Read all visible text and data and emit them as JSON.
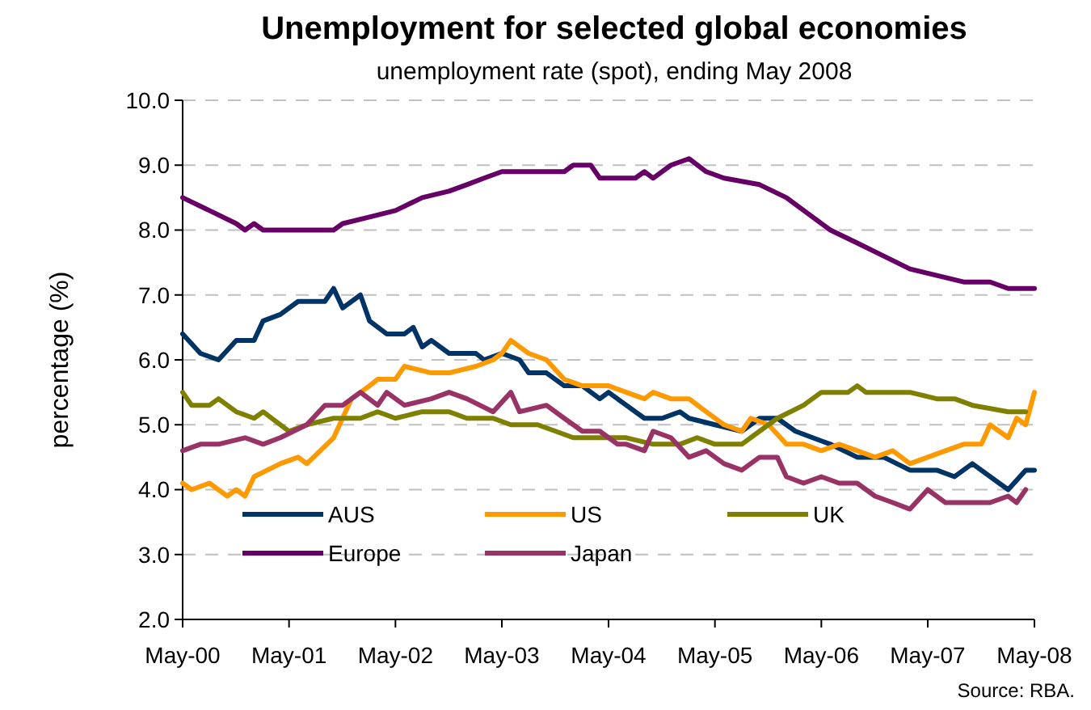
{
  "chart_data": {
    "type": "line",
    "title": "Unemployment for selected global economies",
    "subtitle": "unemployment rate (spot), ending May 2008",
    "ylabel": "percentage (%)",
    "xlim": [
      "2000-05",
      "2008-05"
    ],
    "xticks": [
      {
        "value": "2000-05",
        "label": "May-00"
      },
      {
        "value": "2001-05",
        "label": "May-01"
      },
      {
        "value": "2002-05",
        "label": "May-02"
      },
      {
        "value": "2003-05",
        "label": "May-03"
      },
      {
        "value": "2004-05",
        "label": "May-04"
      },
      {
        "value": "2005-05",
        "label": "May-05"
      },
      {
        "value": "2006-05",
        "label": "May-06"
      },
      {
        "value": "2007-05",
        "label": "May-07"
      },
      {
        "value": "2008-05",
        "label": "May-08"
      }
    ],
    "ylim": [
      2,
      10
    ],
    "yticks": [
      {
        "value": 2,
        "label": "2.0"
      },
      {
        "value": 3,
        "label": "3.0"
      },
      {
        "value": 4,
        "label": "4.0"
      },
      {
        "value": 5,
        "label": "5.0"
      },
      {
        "value": 6,
        "label": "6.0"
      },
      {
        "value": 7,
        "label": "7.0"
      },
      {
        "value": 8,
        "label": "8.0"
      },
      {
        "value": 9,
        "label": "9.0"
      },
      {
        "value": 10,
        "label": "10.0"
      }
    ],
    "grid": "y",
    "legend": "bottom",
    "marker": "none",
    "line_style": "solid",
    "annotations": [
      "Source: RBA."
    ],
    "series": [
      {
        "name": "AUS",
        "color": "#003366",
        "x": [
          "2000-05",
          "2000-07",
          "2000-09",
          "2000-11",
          "2001-01",
          "2001-02",
          "2001-04",
          "2001-06",
          "2001-09",
          "2001-10",
          "2001-11",
          "2002-01",
          "2002-02",
          "2002-04",
          "2002-06",
          "2002-07",
          "2002-08",
          "2002-09",
          "2002-11",
          "2003-02",
          "2003-03",
          "2003-05",
          "2003-07",
          "2003-08",
          "2003-10",
          "2003-12",
          "2004-02",
          "2004-04",
          "2004-05",
          "2004-07",
          "2004-09",
          "2004-11",
          "2005-01",
          "2005-02",
          "2005-05",
          "2005-08",
          "2005-10",
          "2005-12",
          "2006-02",
          "2006-04",
          "2006-06",
          "2006-09",
          "2006-12",
          "2007-03",
          "2007-06",
          "2007-08",
          "2007-10",
          "2008-01",
          "2008-02",
          "2008-04",
          "2008-05"
        ],
        "values": [
          6.4,
          6.1,
          6.0,
          6.3,
          6.3,
          6.6,
          6.7,
          6.9,
          6.9,
          7.1,
          6.8,
          7.0,
          6.6,
          6.4,
          6.4,
          6.5,
          6.2,
          6.3,
          6.1,
          6.1,
          6.0,
          6.1,
          6.0,
          5.8,
          5.8,
          5.6,
          5.6,
          5.4,
          5.5,
          5.3,
          5.1,
          5.1,
          5.2,
          5.1,
          5.0,
          4.9,
          5.1,
          5.1,
          4.9,
          4.8,
          4.7,
          4.5,
          4.5,
          4.3,
          4.3,
          4.2,
          4.4,
          4.1,
          4.0,
          4.3,
          4.3
        ]
      },
      {
        "name": "US",
        "color": "#ff9900",
        "x": [
          "2000-05",
          "2000-06",
          "2000-08",
          "2000-10",
          "2000-11",
          "2000-12",
          "2001-01",
          "2001-04",
          "2001-06",
          "2001-07",
          "2001-10",
          "2001-12",
          "2002-02",
          "2002-03",
          "2002-05",
          "2002-06",
          "2002-09",
          "2002-11",
          "2003-02",
          "2003-04",
          "2003-05",
          "2003-06",
          "2003-07",
          "2003-08",
          "2003-10",
          "2003-12",
          "2004-02",
          "2004-05",
          "2004-07",
          "2004-09",
          "2004-10",
          "2004-12",
          "2005-02",
          "2005-04",
          "2005-06",
          "2005-08",
          "2005-09",
          "2005-11",
          "2006-01",
          "2006-03",
          "2006-05",
          "2006-07",
          "2006-09",
          "2006-11",
          "2007-01",
          "2007-03",
          "2007-05",
          "2007-07",
          "2007-09",
          "2007-11",
          "2007-12",
          "2008-02",
          "2008-03",
          "2008-04",
          "2008-05"
        ],
        "values": [
          4.1,
          4.0,
          4.1,
          3.9,
          4.0,
          3.9,
          4.2,
          4.4,
          4.5,
          4.4,
          4.8,
          5.4,
          5.6,
          5.7,
          5.7,
          5.9,
          5.8,
          5.8,
          5.9,
          6.0,
          6.1,
          6.3,
          6.2,
          6.1,
          6.0,
          5.7,
          5.6,
          5.6,
          5.5,
          5.4,
          5.5,
          5.4,
          5.4,
          5.2,
          5.0,
          4.9,
          5.1,
          5.0,
          4.7,
          4.7,
          4.6,
          4.7,
          4.6,
          4.5,
          4.6,
          4.4,
          4.5,
          4.6,
          4.7,
          4.7,
          5.0,
          4.8,
          5.1,
          5.0,
          5.5
        ]
      },
      {
        "name": "UK",
        "color": "#808000",
        "x": [
          "2000-05",
          "2000-06",
          "2000-08",
          "2000-09",
          "2000-11",
          "2001-01",
          "2001-02",
          "2001-05",
          "2001-07",
          "2001-10",
          "2002-01",
          "2002-03",
          "2002-05",
          "2002-08",
          "2002-11",
          "2003-01",
          "2003-04",
          "2003-06",
          "2003-09",
          "2003-11",
          "2004-01",
          "2004-07",
          "2004-10",
          "2005-01",
          "2005-03",
          "2005-05",
          "2005-08",
          "2005-10",
          "2005-12",
          "2006-03",
          "2006-05",
          "2006-08",
          "2006-09",
          "2006-10",
          "2007-03",
          "2007-06",
          "2007-08",
          "2007-10",
          "2008-02",
          "2008-04"
        ],
        "values": [
          5.5,
          5.3,
          5.3,
          5.4,
          5.2,
          5.1,
          5.2,
          4.9,
          5.0,
          5.1,
          5.1,
          5.2,
          5.1,
          5.2,
          5.2,
          5.1,
          5.1,
          5.0,
          5.0,
          4.9,
          4.8,
          4.8,
          4.7,
          4.7,
          4.8,
          4.7,
          4.7,
          4.9,
          5.1,
          5.3,
          5.5,
          5.5,
          5.6,
          5.5,
          5.5,
          5.4,
          5.4,
          5.3,
          5.2,
          5.2
        ]
      },
      {
        "name": "Europe",
        "color": "#660066",
        "x": [
          "2000-05",
          "2000-08",
          "2000-11",
          "2000-12",
          "2001-01",
          "2001-02",
          "2001-10",
          "2001-11",
          "2002-02",
          "2002-05",
          "2002-08",
          "2002-11",
          "2003-01",
          "2003-03",
          "2003-05",
          "2003-12",
          "2004-01",
          "2004-03",
          "2004-04",
          "2004-08",
          "2004-09",
          "2004-10",
          "2004-12",
          "2005-02",
          "2005-04",
          "2005-06",
          "2005-10",
          "2006-01",
          "2006-04",
          "2006-06",
          "2006-09",
          "2006-12",
          "2007-03",
          "2007-06",
          "2007-09",
          "2007-12",
          "2008-02",
          "2008-05"
        ],
        "values": [
          8.5,
          8.3,
          8.1,
          8.0,
          8.1,
          8.0,
          8.0,
          8.1,
          8.2,
          8.3,
          8.5,
          8.6,
          8.7,
          8.8,
          8.9,
          8.9,
          9.0,
          9.0,
          8.8,
          8.8,
          8.9,
          8.8,
          9.0,
          9.1,
          8.9,
          8.8,
          8.7,
          8.5,
          8.2,
          8.0,
          7.8,
          7.6,
          7.4,
          7.3,
          7.2,
          7.2,
          7.1,
          7.1
        ]
      },
      {
        "name": "Japan",
        "color": "#993366",
        "x": [
          "2000-05",
          "2000-07",
          "2000-09",
          "2000-12",
          "2001-02",
          "2001-04",
          "2001-07",
          "2001-09",
          "2001-11",
          "2002-01",
          "2002-03",
          "2002-04",
          "2002-06",
          "2002-09",
          "2002-11",
          "2003-01",
          "2003-04",
          "2003-06",
          "2003-07",
          "2003-10",
          "2003-12",
          "2004-02",
          "2004-04",
          "2004-06",
          "2004-07",
          "2004-09",
          "2004-10",
          "2004-12",
          "2005-02",
          "2005-04",
          "2005-06",
          "2005-08",
          "2005-10",
          "2005-12",
          "2006-01",
          "2006-03",
          "2006-05",
          "2006-07",
          "2006-09",
          "2006-11",
          "2007-01",
          "2007-03",
          "2007-05",
          "2007-07",
          "2007-10",
          "2007-12",
          "2008-02",
          "2008-03",
          "2008-04"
        ],
        "values": [
          4.6,
          4.7,
          4.7,
          4.8,
          4.7,
          4.8,
          5.0,
          5.3,
          5.3,
          5.5,
          5.3,
          5.5,
          5.3,
          5.4,
          5.5,
          5.4,
          5.2,
          5.5,
          5.2,
          5.3,
          5.1,
          4.9,
          4.9,
          4.7,
          4.7,
          4.6,
          4.9,
          4.8,
          4.5,
          4.6,
          4.4,
          4.3,
          4.5,
          4.5,
          4.2,
          4.1,
          4.2,
          4.1,
          4.1,
          3.9,
          3.8,
          3.7,
          4.0,
          3.8,
          3.8,
          3.8,
          3.9,
          3.8,
          4.0
        ]
      }
    ]
  }
}
